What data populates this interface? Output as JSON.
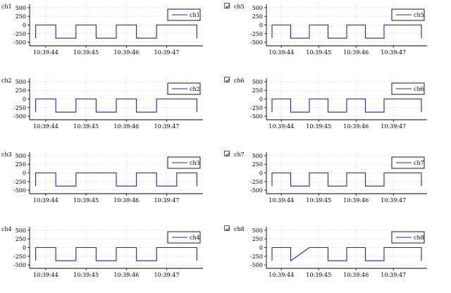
{
  "colors": {
    "signal": "#1f1fd8",
    "grid": "#cfcfcf",
    "axis": "#000000"
  },
  "y_ticks": [
    "500",
    "250",
    "0",
    "-250",
    "-500"
  ],
  "y_values": [
    500,
    250,
    0,
    -250,
    -500
  ],
  "x_ticks": [
    "10:39:44",
    "10:39:45",
    "10:39:46",
    "10:39:47"
  ],
  "x_tick_seconds": [
    44,
    45,
    46,
    47
  ],
  "chart_data": [
    {
      "type": "line",
      "name": "ch1",
      "legend": "ch1",
      "checkbox": false,
      "ylim": [
        -600,
        600
      ],
      "x_tick_labels": [
        "10:39:44",
        "10:39:45",
        "10:39:46",
        "10:39:47"
      ],
      "points": [
        [
          43.75,
          -380
        ],
        [
          43.75,
          0
        ],
        [
          44.25,
          0
        ],
        [
          44.25,
          -380
        ],
        [
          44.75,
          -380
        ],
        [
          44.75,
          0
        ],
        [
          45.25,
          0
        ],
        [
          45.25,
          -380
        ],
        [
          45.75,
          -380
        ],
        [
          45.75,
          0
        ],
        [
          46.25,
          0
        ],
        [
          46.25,
          -380
        ],
        [
          46.75,
          -380
        ],
        [
          46.75,
          0
        ],
        [
          47.75,
          0
        ],
        [
          47.75,
          -380
        ]
      ]
    },
    {
      "type": "line",
      "name": "ch2",
      "legend": "ch2",
      "checkbox": false,
      "ylim": [
        -600,
        600
      ],
      "x_tick_labels": [
        "10:39:44",
        "10:39:45",
        "10:39:46",
        "10:39:47"
      ],
      "points": [
        [
          43.75,
          -380
        ],
        [
          43.75,
          0
        ],
        [
          44.25,
          0
        ],
        [
          44.25,
          -380
        ],
        [
          44.75,
          -380
        ],
        [
          44.75,
          0
        ],
        [
          45.25,
          0
        ],
        [
          45.25,
          -380
        ],
        [
          45.75,
          -380
        ],
        [
          45.75,
          0
        ],
        [
          46.25,
          0
        ],
        [
          46.25,
          -380
        ],
        [
          46.75,
          -380
        ],
        [
          46.75,
          0
        ],
        [
          47.75,
          0
        ],
        [
          47.75,
          -380
        ]
      ]
    },
    {
      "type": "line",
      "name": "ch3",
      "legend": "ch3",
      "checkbox": false,
      "ylim": [
        -600,
        600
      ],
      "x_tick_labels": [
        "10:39:44",
        "10:39:45",
        "10:39:46",
        "10:39:47"
      ],
      "points": [
        [
          43.75,
          -380
        ],
        [
          43.75,
          0
        ],
        [
          44.25,
          0
        ],
        [
          44.25,
          -380
        ],
        [
          44.75,
          -380
        ],
        [
          44.75,
          0
        ],
        [
          45.75,
          0
        ],
        [
          45.75,
          -380
        ],
        [
          46.25,
          -380
        ],
        [
          46.25,
          0
        ],
        [
          46.75,
          0
        ],
        [
          46.75,
          -380
        ],
        [
          47.25,
          -380
        ],
        [
          47.25,
          0
        ],
        [
          47.75,
          0
        ],
        [
          47.75,
          -380
        ]
      ]
    },
    {
      "type": "line",
      "name": "ch4",
      "legend": "ch4",
      "checkbox": false,
      "ylim": [
        -600,
        600
      ],
      "x_tick_labels": [
        "10:39:44",
        "10:39:45",
        "10:39:46",
        "10:39:47"
      ],
      "points": [
        [
          43.75,
          -380
        ],
        [
          43.75,
          0
        ],
        [
          44.25,
          0
        ],
        [
          44.25,
          -380
        ],
        [
          44.75,
          -380
        ],
        [
          44.75,
          0
        ],
        [
          45.25,
          0
        ],
        [
          45.25,
          -380
        ],
        [
          45.75,
          -380
        ],
        [
          45.75,
          0
        ],
        [
          46.25,
          0
        ],
        [
          46.25,
          -380
        ],
        [
          46.75,
          -380
        ],
        [
          46.75,
          0
        ],
        [
          47.75,
          0
        ],
        [
          47.75,
          -380
        ]
      ]
    },
    {
      "type": "line",
      "name": "ch5",
      "legend": "ch5",
      "checkbox": true,
      "ylim": [
        -600,
        600
      ],
      "x_tick_labels": [
        "10:39:44",
        "10:39:45",
        "10:39:46",
        "10:39:47"
      ],
      "points": [
        [
          43.75,
          -380
        ],
        [
          43.75,
          0
        ],
        [
          44.25,
          0
        ],
        [
          44.25,
          -380
        ],
        [
          44.75,
          -380
        ],
        [
          44.75,
          0
        ],
        [
          45.25,
          0
        ],
        [
          45.25,
          -380
        ],
        [
          45.75,
          -380
        ],
        [
          45.75,
          0
        ],
        [
          46.25,
          0
        ],
        [
          46.25,
          -380
        ],
        [
          46.75,
          -380
        ],
        [
          46.75,
          0
        ],
        [
          47.75,
          0
        ],
        [
          47.75,
          -380
        ]
      ]
    },
    {
      "type": "line",
      "name": "ch6",
      "legend": "ch6",
      "checkbox": true,
      "ylim": [
        -600,
        600
      ],
      "x_tick_labels": [
        "10:39:44",
        "10:39:45",
        "10:39:46",
        "10:39:47"
      ],
      "points": [
        [
          43.75,
          -380
        ],
        [
          43.75,
          0
        ],
        [
          44.25,
          0
        ],
        [
          44.25,
          -380
        ],
        [
          44.75,
          -380
        ],
        [
          44.75,
          0
        ],
        [
          45.25,
          0
        ],
        [
          45.25,
          -380
        ],
        [
          45.75,
          -380
        ],
        [
          45.75,
          0
        ],
        [
          46.25,
          0
        ],
        [
          46.25,
          -380
        ],
        [
          46.75,
          -380
        ],
        [
          46.75,
          0
        ],
        [
          47.75,
          0
        ],
        [
          47.75,
          -380
        ]
      ]
    },
    {
      "type": "line",
      "name": "ch7",
      "legend": "ch7",
      "checkbox": true,
      "ylim": [
        -600,
        600
      ],
      "x_tick_labels": [
        "10:39:44",
        "10:39:45",
        "10:39:46",
        "10:39:47"
      ],
      "points": [
        [
          43.75,
          -380
        ],
        [
          43.75,
          0
        ],
        [
          44.25,
          0
        ],
        [
          44.25,
          -380
        ],
        [
          44.75,
          -380
        ],
        [
          44.75,
          0
        ],
        [
          45.25,
          0
        ],
        [
          45.25,
          -380
        ],
        [
          45.75,
          -380
        ],
        [
          45.75,
          0
        ],
        [
          46.25,
          0
        ],
        [
          46.25,
          -380
        ],
        [
          46.75,
          -380
        ],
        [
          46.75,
          0
        ],
        [
          47.75,
          0
        ],
        [
          47.75,
          -380
        ]
      ]
    },
    {
      "type": "line",
      "name": "ch8",
      "legend": "ch8",
      "checkbox": true,
      "ylim": [
        -600,
        600
      ],
      "x_tick_labels": [
        "10:39:44",
        "10:39:45",
        "10:39:46",
        "10:39:47"
      ],
      "points": [
        [
          43.75,
          -380
        ],
        [
          43.75,
          0
        ],
        [
          44.25,
          0
        ],
        [
          44.25,
          -380
        ],
        [
          44.75,
          0
        ],
        [
          45.25,
          0
        ],
        [
          45.25,
          -380
        ],
        [
          45.75,
          -380
        ],
        [
          45.75,
          0
        ],
        [
          46.25,
          0
        ],
        [
          46.25,
          -380
        ],
        [
          46.75,
          -380
        ],
        [
          46.75,
          0
        ],
        [
          47.75,
          0
        ],
        [
          47.75,
          -380
        ]
      ]
    }
  ]
}
